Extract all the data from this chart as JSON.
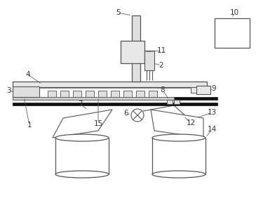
{
  "background_color": "#ffffff",
  "line_color": "#555555",
  "label_color": "#333333",
  "fig_width": 3.65,
  "fig_height": 2.86,
  "dpi": 100
}
